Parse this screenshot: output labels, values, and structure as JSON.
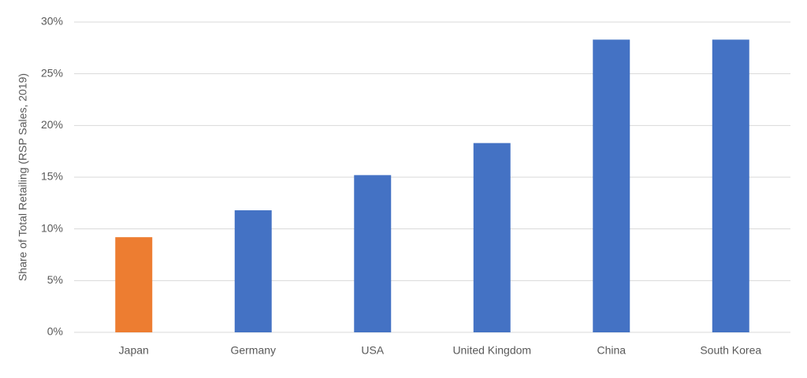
{
  "chart_data": {
    "type": "bar",
    "y_axis_label": "Share of Total Retailing (RSP Sales, 2019)",
    "categories": [
      "Japan",
      "Germany",
      "USA",
      "United Kingdom",
      "China",
      "South Korea"
    ],
    "values": [
      9.2,
      11.8,
      15.2,
      18.3,
      28.3,
      28.3
    ],
    "colors": [
      "#ed7d31",
      "#4472c4",
      "#4472c4",
      "#4472c4",
      "#4472c4",
      "#4472c4"
    ],
    "ylim": [
      0,
      30
    ],
    "yticks": [
      {
        "value": 0,
        "label": "0%"
      },
      {
        "value": 5,
        "label": "5%"
      },
      {
        "value": 10,
        "label": "10%"
      },
      {
        "value": 15,
        "label": "15%"
      },
      {
        "value": 20,
        "label": "20%"
      },
      {
        "value": 25,
        "label": "25%"
      },
      {
        "value": 30,
        "label": "30%"
      }
    ],
    "grid": true
  }
}
